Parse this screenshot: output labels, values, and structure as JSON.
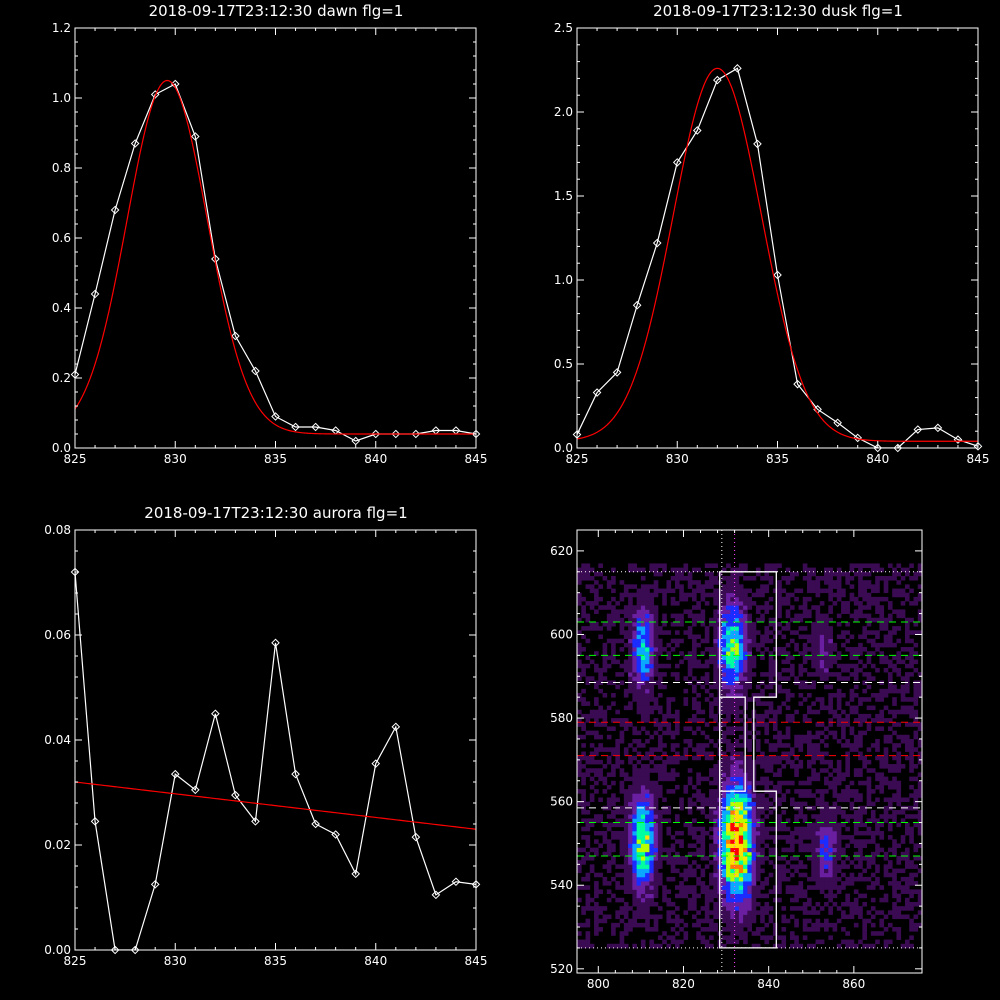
{
  "chart_data": [
    {
      "type": "line",
      "title": "2018-09-17T23:12:30 dawn flg=1",
      "xlim": [
        825,
        845
      ],
      "ylim": [
        0,
        1.2
      ],
      "xticks": [
        "825",
        "830",
        "835",
        "840",
        "845"
      ],
      "yticks": [
        "0.0",
        "0.2",
        "0.4",
        "0.6",
        "0.8",
        "1.0",
        "1.2"
      ],
      "series": [
        {
          "x": [
            825,
            826,
            827,
            828,
            829,
            830,
            831,
            832,
            833,
            834,
            835,
            836,
            837,
            838,
            839,
            840,
            841,
            842,
            843,
            844,
            845
          ],
          "values": [
            0.21,
            0.44,
            0.68,
            0.87,
            1.01,
            1.04,
            0.89,
            0.54,
            0.32,
            0.22,
            0.09,
            0.06,
            0.06,
            0.05,
            0.02,
            0.04,
            0.04,
            0.04,
            0.05,
            0.05,
            0.04
          ],
          "color": "#ffffff",
          "markers": true
        },
        {
          "fit": {
            "A": 1.01,
            "mu": 829.6,
            "sigma": 2.0,
            "B": 0.04,
            "slope": 0
          },
          "color": "#ff0000"
        }
      ]
    },
    {
      "type": "line",
      "title": "2018-09-17T23:12:30 dusk flg=1",
      "xlim": [
        825,
        845
      ],
      "ylim": [
        0,
        2.5
      ],
      "xticks": [
        "825",
        "830",
        "835",
        "840",
        "845"
      ],
      "yticks": [
        "0.0",
        "0.5",
        "1.0",
        "1.5",
        "2.0",
        "2.5"
      ],
      "series": [
        {
          "x": [
            825,
            826,
            827,
            828,
            829,
            830,
            831,
            832,
            833,
            834,
            835,
            836,
            837,
            838,
            839,
            840,
            841,
            842,
            843,
            844,
            845
          ],
          "values": [
            0.08,
            0.33,
            0.45,
            0.85,
            1.22,
            1.7,
            1.89,
            2.19,
            2.26,
            1.81,
            1.03,
            0.38,
            0.23,
            0.15,
            0.06,
            0.0,
            0.0,
            0.11,
            0.12,
            0.05,
            0.01
          ],
          "color": "#ffffff",
          "markers": true
        },
        {
          "fit": {
            "A": 2.22,
            "mu": 832.0,
            "sigma": 2.2,
            "B": 0.04,
            "slope": 0
          },
          "color": "#ff0000"
        }
      ]
    },
    {
      "type": "line",
      "title": "2018-09-17T23:12:30 aurora flg=1",
      "xlim": [
        825,
        845
      ],
      "ylim": [
        0,
        0.08
      ],
      "xticks": [
        "825",
        "830",
        "835",
        "840",
        "845"
      ],
      "yticks": [
        "0.00",
        "0.02",
        "0.04",
        "0.06",
        "0.08"
      ],
      "series": [
        {
          "x": [
            825,
            826,
            827,
            828,
            829,
            830,
            831,
            832,
            833,
            834,
            835,
            836,
            837,
            838,
            839,
            840,
            841,
            842,
            843,
            844,
            845
          ],
          "values": [
            0.072,
            0.0245,
            0.0,
            0.0,
            0.0125,
            0.0335,
            0.0305,
            0.045,
            0.0295,
            0.0245,
            0.0585,
            0.0335,
            0.024,
            0.022,
            0.0145,
            0.0355,
            0.0425,
            0.0215,
            0.0105,
            0.013,
            0.0125
          ],
          "color": "#ffffff",
          "markers": true
        },
        {
          "fit": {
            "A": 0,
            "mu": 835,
            "sigma": 1,
            "B": 0.032,
            "slope": -0.00045
          },
          "color": "#ff0000"
        }
      ]
    },
    {
      "type": "heatmap",
      "title": "",
      "xlim": [
        795,
        876
      ],
      "ylim": [
        519,
        625
      ],
      "xticks": [
        "800",
        "820",
        "840",
        "860"
      ],
      "yticks": [
        "520",
        "540",
        "560",
        "580",
        "600",
        "620"
      ],
      "colormap": [
        "#000000",
        "#3a0a52",
        "#6a1fa0",
        "#1a2cff",
        "#0aa8ff",
        "#00ffa0",
        "#b8ff00",
        "#ffe000",
        "#ff7a00",
        "#ff0000"
      ],
      "blobs": [
        {
          "x": 810,
          "y": 596,
          "sx": 2.0,
          "sy": 7.0,
          "amp": 0.45
        },
        {
          "x": 831,
          "y": 597,
          "sx": 2.3,
          "sy": 8.0,
          "amp": 0.55
        },
        {
          "x": 852,
          "y": 596,
          "sx": 2.0,
          "sy": 5.0,
          "amp": 0.18
        },
        {
          "x": 810,
          "y": 550,
          "sx": 2.1,
          "sy": 8.0,
          "amp": 0.62
        },
        {
          "x": 832,
          "y": 550,
          "sx": 2.6,
          "sy": 9.5,
          "amp": 0.95
        },
        {
          "x": 853,
          "y": 548,
          "sx": 2.0,
          "sy": 6.0,
          "amp": 0.28
        }
      ],
      "hlines": [
        {
          "y": 615,
          "color": "#ffffff",
          "style": "dotted"
        },
        {
          "y": 603,
          "color": "#00ff00",
          "style": "dashed"
        },
        {
          "y": 595,
          "color": "#00ff00",
          "style": "dashed"
        },
        {
          "y": 588.5,
          "color": "#ffffff",
          "style": "dashed"
        },
        {
          "y": 579,
          "color": "#ff0000",
          "style": "dashed"
        },
        {
          "y": 571,
          "color": "#ff0000",
          "style": "dashed"
        },
        {
          "y": 558.5,
          "color": "#ffffff",
          "style": "dashed"
        },
        {
          "y": 555,
          "color": "#00ff00",
          "style": "dashed"
        },
        {
          "y": 547,
          "color": "#00ff00",
          "style": "dashed"
        },
        {
          "y": 525,
          "color": "#ffffff",
          "style": "dotted"
        }
      ],
      "vlines": [
        {
          "x": 829,
          "color": "#ffffff",
          "style": "dotted"
        },
        {
          "x": 832,
          "color": "#ff44ff",
          "style": "dotted"
        }
      ],
      "box_outline": [
        [
          828.5,
          525
        ],
        [
          841.8,
          525
        ],
        [
          841.8,
          562.5
        ],
        [
          836.5,
          562.5
        ],
        [
          836.5,
          585
        ],
        [
          841.8,
          585
        ],
        [
          841.8,
          615
        ],
        [
          828.5,
          615
        ]
      ],
      "inner_box": [
        [
          828.5,
          562.5
        ],
        [
          834.5,
          562.5
        ],
        [
          834.5,
          585
        ],
        [
          828.5,
          585
        ]
      ]
    }
  ]
}
